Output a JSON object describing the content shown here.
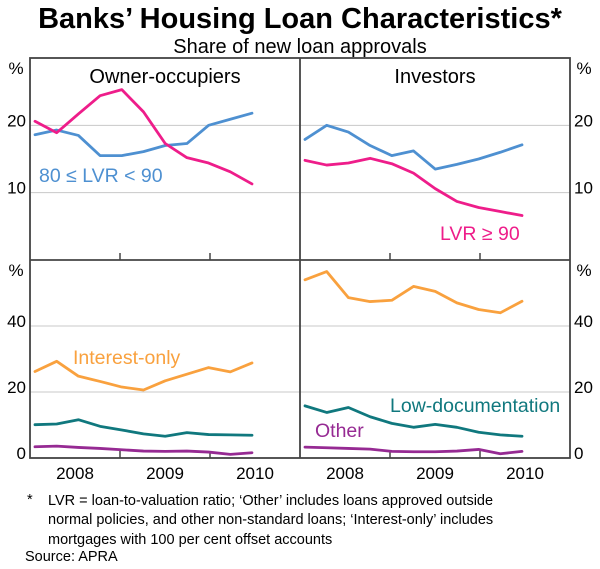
{
  "header": {
    "title": "Banks’ Housing Loan Characteristics*",
    "subtitle": "Share of new loan approvals"
  },
  "footnote": {
    "marker": "*",
    "lines": [
      "LVR = loan-to-valuation ratio; ‘Other’ includes loans approved outside",
      "normal policies, and other non-standard loans; ‘Interest-only’ includes",
      "mortgages with 100 per cent offset accounts"
    ],
    "source": "Source: APRA"
  },
  "colors": {
    "lvr_80_90": "#4e90d1",
    "lvr_90_plus": "#ee1d8a",
    "interest_only": "#f9a13e",
    "low_documentation": "#10787e",
    "other": "#962a93",
    "gridline": "#c8c8c8",
    "frame": "#444444",
    "text": "#000000"
  },
  "chart_data": {
    "type": "line",
    "unit": "%",
    "grid": true,
    "quarters": [
      "Mar 2008",
      "Jun 2008",
      "Sep 2008",
      "Dec 2008",
      "Mar 2009",
      "Jun 2009",
      "Sep 2009",
      "Dec 2009",
      "Mar 2010",
      "Jun 2010",
      "Sep 2010"
    ],
    "x_tick_labels": [
      "2008",
      "2009",
      "2010"
    ],
    "panels": [
      {
        "id": "owner-occupiers-lvr",
        "title": "Owner-occupiers",
        "ylim": [
          0,
          30
        ],
        "gridlines": [
          10,
          20
        ],
        "yticks": [
          {
            "v": 20,
            "label": "20"
          },
          {
            "v": 10,
            "label": "10"
          }
        ],
        "series": [
          {
            "key": "lvr_80_90",
            "name": "80 ≤ LVR < 90",
            "values": [
              18.6,
              19.3,
              18.5,
              15.5,
              15.5,
              16.1,
              17.0,
              17.3,
              20.0,
              20.9,
              21.8
            ]
          },
          {
            "key": "lvr_90_plus",
            "name": "LVR ≥ 90",
            "values": [
              20.6,
              18.9,
              21.7,
              24.4,
              25.3,
              22.0,
              17.3,
              15.2,
              14.4,
              13.1,
              11.3
            ]
          }
        ],
        "annotations": [
          {
            "text": "80 ≤ LVR < 90",
            "color": "lvr_80_90",
            "x": 39,
            "y": 182
          }
        ]
      },
      {
        "id": "investors-lvr",
        "title": "Investors",
        "ylim": [
          0,
          30
        ],
        "gridlines": [
          10,
          20
        ],
        "yticks": [
          {
            "v": 20,
            "label": "20"
          },
          {
            "v": 10,
            "label": "10"
          }
        ],
        "series": [
          {
            "key": "lvr_80_90",
            "name": "80 ≤ LVR < 90",
            "values": [
              17.9,
              20.0,
              19.0,
              17.0,
              15.5,
              16.2,
              13.5,
              14.2,
              15.0,
              16.0,
              17.1
            ]
          },
          {
            "key": "lvr_90_plus",
            "name": "LVR ≥ 90",
            "values": [
              14.8,
              14.1,
              14.4,
              15.1,
              14.3,
              12.9,
              10.6,
              8.7,
              7.8,
              7.2,
              6.6
            ]
          }
        ],
        "annotations": [
          {
            "text": "LVR ≥ 90",
            "color": "lvr_90_plus",
            "x": 440,
            "y": 240
          }
        ]
      },
      {
        "id": "owner-occupiers-loan-types",
        "title": "",
        "ylim": [
          0,
          60
        ],
        "gridlines": [
          20,
          40
        ],
        "yticks": [
          {
            "v": 40,
            "label": "40"
          },
          {
            "v": 20,
            "label": "20"
          },
          {
            "v": 0,
            "label": "0"
          }
        ],
        "series": [
          {
            "key": "interest_only",
            "name": "Interest-only",
            "values": [
              26.2,
              29.3,
              24.8,
              23.2,
              21.5,
              20.6,
              23.4,
              25.4,
              27.4,
              26.1,
              28.8
            ]
          },
          {
            "key": "low_documentation",
            "name": "Low-documentation",
            "values": [
              10.1,
              10.3,
              11.6,
              9.6,
              8.5,
              7.3,
              6.6,
              7.7,
              7.1,
              7.0,
              6.9
            ]
          },
          {
            "key": "other",
            "name": "Other",
            "values": [
              3.4,
              3.6,
              3.2,
              2.9,
              2.5,
              2.1,
              2.0,
              2.1,
              1.8,
              1.1,
              1.6
            ]
          }
        ],
        "annotations": [
          {
            "text": "Interest-only",
            "color": "interest_only",
            "x": 73,
            "y": 364
          }
        ]
      },
      {
        "id": "investors-loan-types",
        "title": "",
        "ylim": [
          0,
          60
        ],
        "gridlines": [
          20,
          40
        ],
        "yticks": [
          {
            "v": 40,
            "label": "40"
          },
          {
            "v": 20,
            "label": "20"
          },
          {
            "v": 0,
            "label": "0"
          }
        ],
        "series": [
          {
            "key": "interest_only",
            "name": "Interest-only",
            "values": [
              54.0,
              56.5,
              48.6,
              47.4,
              47.8,
              52.0,
              50.5,
              47.0,
              45.0,
              44.0,
              47.5
            ]
          },
          {
            "key": "low_documentation",
            "name": "Low-documentation",
            "values": [
              15.8,
              13.8,
              15.3,
              12.5,
              10.5,
              9.3,
              10.2,
              9.3,
              7.8,
              7.0,
              6.6
            ]
          },
          {
            "key": "other",
            "name": "Other",
            "values": [
              3.3,
              3.1,
              2.9,
              2.7,
              2.0,
              1.9,
              1.9,
              2.1,
              2.6,
              1.3,
              2.0
            ]
          }
        ],
        "annotations": [
          {
            "text": "Low-documentation",
            "color": "low_documentation",
            "x": 390,
            "y": 412
          },
          {
            "text": "Other",
            "color": "other",
            "x": 315,
            "y": 437
          }
        ]
      }
    ]
  }
}
